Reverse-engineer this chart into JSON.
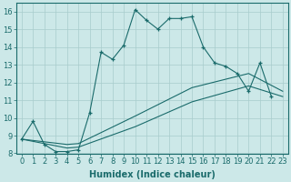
{
  "xlabel": "Humidex (Indice chaleur)",
  "background_color": "#cce8e8",
  "grid_color": "#a8cccc",
  "line_color": "#1a6b6b",
  "xlim": [
    -0.5,
    23.5
  ],
  "ylim": [
    8,
    16.5
  ],
  "xticks": [
    0,
    1,
    2,
    3,
    4,
    5,
    6,
    7,
    8,
    9,
    10,
    11,
    12,
    13,
    14,
    15,
    16,
    17,
    18,
    19,
    20,
    21,
    22,
    23
  ],
  "yticks": [
    8,
    9,
    10,
    11,
    12,
    13,
    14,
    15,
    16
  ],
  "curve_x": [
    0,
    1,
    2,
    3,
    4,
    5,
    6,
    7,
    8,
    9,
    10,
    11,
    12,
    13,
    14,
    15,
    16,
    17,
    18,
    19,
    20,
    21,
    22
  ],
  "curve_y": [
    8.8,
    9.8,
    8.5,
    8.1,
    8.1,
    8.2,
    10.3,
    13.7,
    13.3,
    14.1,
    16.1,
    15.5,
    15.0,
    15.6,
    15.6,
    15.7,
    14.0,
    13.1,
    12.9,
    12.5,
    11.5,
    13.1,
    11.2
  ],
  "diag1_x": [
    0,
    4,
    5,
    10,
    15,
    20,
    23
  ],
  "diag1_y": [
    8.8,
    8.5,
    8.55,
    10.1,
    11.7,
    12.5,
    11.5
  ],
  "diag2_x": [
    0,
    4,
    5,
    10,
    15,
    20,
    23
  ],
  "diag2_y": [
    8.8,
    8.3,
    8.35,
    9.5,
    10.9,
    11.8,
    11.2
  ],
  "font_size_xlabel": 7,
  "font_size_ticks": 6
}
